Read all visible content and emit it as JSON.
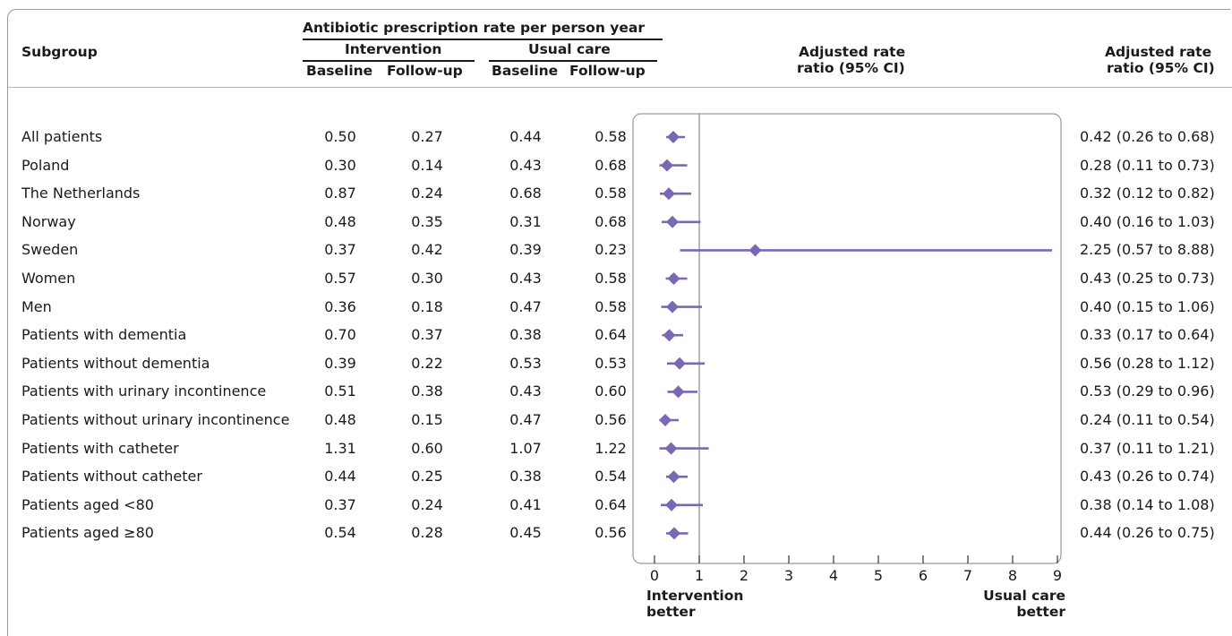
{
  "header": {
    "subgroup": "Subgroup",
    "rate_title": "Antibiotic prescription rate per person year",
    "intervention": "Intervention",
    "usual_care": "Usual care",
    "baseline": "Baseline",
    "followup": "Follow-up",
    "adj_rate_line1": "Adjusted rate",
    "adj_rate_line2": "ratio (95% CI)"
  },
  "rows": [
    {
      "label": "All patients",
      "int_base": "0.50",
      "int_fu": "0.27",
      "uc_base": "0.44",
      "uc_fu": "0.58",
      "ci_text": "0.42 (0.26 to 0.68)"
    },
    {
      "label": "Poland",
      "int_base": "0.30",
      "int_fu": "0.14",
      "uc_base": "0.43",
      "uc_fu": "0.68",
      "ci_text": "0.28  (0.11 to 0.73)"
    },
    {
      "label": "The Netherlands",
      "int_base": "0.87",
      "int_fu": "0.24",
      "uc_base": "0.68",
      "uc_fu": "0.58",
      "ci_text": "0.32  (0.12 to 0.82)"
    },
    {
      "label": "Norway",
      "int_base": "0.48",
      "int_fu": "0.35",
      "uc_base": "0.31",
      "uc_fu": "0.68",
      "ci_text": "0.40  (0.16 to 1.03)"
    },
    {
      "label": "Sweden",
      "int_base": "0.37",
      "int_fu": "0.42",
      "uc_base": "0.39",
      "uc_fu": "0.23",
      "ci_text": "2.25  (0.57 to 8.88)"
    },
    {
      "label": "Women",
      "int_base": "0.57",
      "int_fu": "0.30",
      "uc_base": "0.43",
      "uc_fu": "0.58",
      "ci_text": "0.43  (0.25 to 0.73)"
    },
    {
      "label": "Men",
      "int_base": "0.36",
      "int_fu": "0.18",
      "uc_base": "0.47",
      "uc_fu": "0.58",
      "ci_text": "0.40  (0.15 to 1.06)"
    },
    {
      "label": "Patients with dementia",
      "int_base": "0.70",
      "int_fu": "0.37",
      "uc_base": "0.38",
      "uc_fu": "0.64",
      "ci_text": "0.33 (0.17 to 0.64)"
    },
    {
      "label": "Patients without dementia",
      "int_base": "0.39",
      "int_fu": "0.22",
      "uc_base": "0.53",
      "uc_fu": "0.53",
      "ci_text": "0.56  (0.28 to 1.12)"
    },
    {
      "label": "Patients with urinary incontinence",
      "int_base": "0.51",
      "int_fu": "0.38",
      "uc_base": "0.43",
      "uc_fu": "0.60",
      "ci_text": "0.53  (0.29 to 0.96)"
    },
    {
      "label": "Patients without urinary incontinence",
      "int_base": "0.48",
      "int_fu": "0.15",
      "uc_base": "0.47",
      "uc_fu": "0.56",
      "ci_text": "0.24 (0.11 to 0.54)"
    },
    {
      "label": "Patients with catheter",
      "int_base": "1.31",
      "int_fu": "0.60",
      "uc_base": "1.07",
      "uc_fu": "1.22",
      "ci_text": "0.37  (0.11 to 1.21)"
    },
    {
      "label": "Patients without catheter",
      "int_base": "0.44",
      "int_fu": "0.25",
      "uc_base": "0.38",
      "uc_fu": "0.54",
      "ci_text": "0.43  (0.26 to 0.74)"
    },
    {
      "label": "Patients aged <80",
      "int_base": "0.37",
      "int_fu": "0.24",
      "uc_base": "0.41",
      "uc_fu": "0.64",
      "ci_text": "0.38  (0.14 to 1.08)"
    },
    {
      "label": "Patients aged ≥80",
      "int_base": "0.54",
      "int_fu": "0.28",
      "uc_base": "0.45",
      "uc_fu": "0.56",
      "ci_text": "0.44  (0.26 to 0.75)"
    }
  ],
  "chart_data": {
    "type": "forest",
    "title": "",
    "xlim": [
      0,
      9
    ],
    "x_ticks": [
      "0",
      "1",
      "2",
      "3",
      "4",
      "5",
      "6",
      "7",
      "8",
      "9"
    ],
    "reference_line": 1,
    "left_caption": [
      "Intervention",
      "better"
    ],
    "right_caption": [
      "Usual care",
      "better"
    ],
    "marker_color": "#7b68b5",
    "series": [
      {
        "label": "All patients",
        "estimate": 0.42,
        "lower": 0.26,
        "upper": 0.68
      },
      {
        "label": "Poland",
        "estimate": 0.28,
        "lower": 0.11,
        "upper": 0.73
      },
      {
        "label": "The Netherlands",
        "estimate": 0.32,
        "lower": 0.12,
        "upper": 0.82
      },
      {
        "label": "Norway",
        "estimate": 0.4,
        "lower": 0.16,
        "upper": 1.03
      },
      {
        "label": "Sweden",
        "estimate": 2.25,
        "lower": 0.57,
        "upper": 8.88
      },
      {
        "label": "Women",
        "estimate": 0.43,
        "lower": 0.25,
        "upper": 0.73
      },
      {
        "label": "Men",
        "estimate": 0.4,
        "lower": 0.15,
        "upper": 1.06
      },
      {
        "label": "Patients with dementia",
        "estimate": 0.33,
        "lower": 0.17,
        "upper": 0.64
      },
      {
        "label": "Patients without dementia",
        "estimate": 0.56,
        "lower": 0.28,
        "upper": 1.12
      },
      {
        "label": "Patients with urinary incontinence",
        "estimate": 0.53,
        "lower": 0.29,
        "upper": 0.96
      },
      {
        "label": "Patients without urinary incontinence",
        "estimate": 0.24,
        "lower": 0.11,
        "upper": 0.54
      },
      {
        "label": "Patients with catheter",
        "estimate": 0.37,
        "lower": 0.11,
        "upper": 1.21
      },
      {
        "label": "Patients without catheter",
        "estimate": 0.43,
        "lower": 0.26,
        "upper": 0.74
      },
      {
        "label": "Patients aged <80",
        "estimate": 0.38,
        "lower": 0.14,
        "upper": 1.08
      },
      {
        "label": "Patients aged ≥80",
        "estimate": 0.44,
        "lower": 0.26,
        "upper": 0.75
      }
    ]
  }
}
